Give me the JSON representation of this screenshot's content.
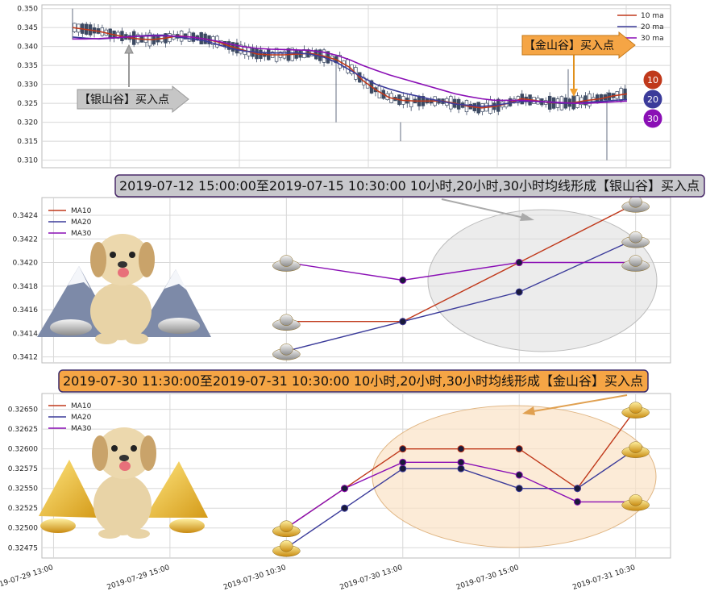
{
  "colors": {
    "ma10": "#c0391b",
    "ma20": "#3b3b9a",
    "ma30": "#8a0fb5",
    "candle": "#3d4a63",
    "silver_banner": "#c8c8cc",
    "gold_banner": "#f5a545",
    "silver_ellipse": "#dcdcdc",
    "gold_ellipse": "#fbe3c6"
  },
  "chart_data": [
    {
      "type": "candlestick-line",
      "ylim": [
        0.308,
        0.351
      ],
      "yticks": [
        "0.350",
        "0.345",
        "0.340",
        "0.335",
        "0.330",
        "0.325",
        "0.320",
        "0.315",
        "0.310"
      ],
      "ytick_values": [
        0.35,
        0.345,
        0.34,
        0.335,
        0.33,
        0.325,
        0.32,
        0.315,
        0.31
      ],
      "legend": [
        "10 ma",
        "20 ma",
        "30 ma"
      ],
      "legend_position": "top-right",
      "grid": true,
      "n_points": 140,
      "ma10": [
        0.345,
        0.3445,
        0.344,
        0.3432,
        0.3425,
        0.342,
        0.3418,
        0.3422,
        0.3428,
        0.3425,
        0.342,
        0.3412,
        0.34,
        0.339,
        0.338,
        0.3378,
        0.3378,
        0.338,
        0.3382,
        0.3375,
        0.3365,
        0.3345,
        0.331,
        0.3285,
        0.3265,
        0.3258,
        0.3256,
        0.3256,
        0.3256,
        0.325,
        0.3242,
        0.3238,
        0.3242,
        0.325,
        0.3262,
        0.3258,
        0.3252,
        0.325,
        0.3252,
        0.3258,
        0.3262,
        0.327,
        0.3275
      ],
      "ma20": [
        0.3425,
        0.3422,
        0.342,
        0.3422,
        0.3425,
        0.3428,
        0.343,
        0.343,
        0.3425,
        0.342,
        0.3415,
        0.3405,
        0.3395,
        0.3388,
        0.3385,
        0.3383,
        0.3383,
        0.3383,
        0.338,
        0.3372,
        0.3358,
        0.3338,
        0.3318,
        0.33,
        0.3288,
        0.3278,
        0.327,
        0.3262,
        0.3255,
        0.3248,
        0.3245,
        0.3242,
        0.3245,
        0.325,
        0.3255,
        0.3255,
        0.3253,
        0.325,
        0.325,
        0.3253,
        0.3255,
        0.3258,
        0.326
      ],
      "ma30": [
        0.342,
        0.342,
        0.3421,
        0.3423,
        0.3425,
        0.3427,
        0.3428,
        0.3428,
        0.3427,
        0.3425,
        0.342,
        0.3414,
        0.3406,
        0.3399,
        0.3395,
        0.3393,
        0.3392,
        0.3391,
        0.339,
        0.3385,
        0.3377,
        0.3365,
        0.335,
        0.3337,
        0.3325,
        0.3315,
        0.3305,
        0.3295,
        0.3285,
        0.3275,
        0.3268,
        0.3262,
        0.3258,
        0.3258,
        0.3258,
        0.3256,
        0.3254,
        0.3252,
        0.325,
        0.325,
        0.3252,
        0.3254,
        0.3256
      ]
    },
    {
      "type": "line",
      "ylim": [
        0.34115,
        0.34255
      ],
      "yticks": [
        "0.3424",
        "0.3422",
        "0.3420",
        "0.3418",
        "0.3416",
        "0.3414",
        "0.3412"
      ],
      "ytick_values": [
        0.3424,
        0.3422,
        0.342,
        0.3418,
        0.3416,
        0.3414,
        0.3412
      ],
      "x": [
        2,
        3,
        4,
        5
      ],
      "xlim": [
        -0.1,
        5.3
      ],
      "legend_position": "top-left",
      "grid": true,
      "series": [
        {
          "name": "MA10",
          "values": [
            0.3415,
            0.3415,
            0.342,
            0.3425
          ]
        },
        {
          "name": "MA20",
          "values": [
            0.34125,
            0.3415,
            0.34175,
            0.3422
          ]
        },
        {
          "name": "MA30",
          "values": [
            0.342,
            0.34185,
            0.342,
            0.342
          ]
        }
      ]
    },
    {
      "type": "line",
      "ylim": [
        0.32462,
        0.3267
      ],
      "yticks": [
        "0.32650",
        "0.32625",
        "0.32600",
        "0.32575",
        "0.32550",
        "0.32525",
        "0.32500",
        "0.32475"
      ],
      "ytick_values": [
        0.3265,
        0.32625,
        0.326,
        0.32575,
        0.3255,
        0.32525,
        0.325,
        0.32475
      ],
      "x": [
        2,
        2.5,
        3,
        3.5,
        4,
        4.5,
        5
      ],
      "xlim": [
        -0.1,
        5.3
      ],
      "xticks": [
        "2019-07-29 13:00",
        "2019-07-29 15:00",
        "2019-07-30 10:30",
        "2019-07-30 13:00",
        "2019-07-30 15:00",
        "2019-07-31 10:30"
      ],
      "xtick_values": [
        0,
        1,
        2,
        3,
        4,
        5
      ],
      "legend_position": "top-left",
      "grid": true,
      "series": [
        {
          "name": "MA10",
          "values": [
            0.325,
            0.3255,
            0.326,
            0.326,
            0.326,
            0.3255,
            0.3265
          ]
        },
        {
          "name": "MA20",
          "values": [
            0.32475,
            0.32525,
            0.32575,
            0.32575,
            0.3255,
            0.3255,
            0.326
          ]
        },
        {
          "name": "MA30",
          "values": [
            0.325,
            0.3255,
            0.32583,
            0.32583,
            0.32567,
            0.32533,
            0.32533
          ]
        }
      ]
    }
  ],
  "annotations": {
    "silver_arrow_label": "【银山谷】买入点",
    "gold_arrow_label": "【金山谷】买入点",
    "badges": [
      "10",
      "20",
      "30"
    ],
    "silver_banner": "2019-07-12 15:00:00至2019-07-15 10:30:00 10小时,20小时,30小时均线形成【银山谷】买入点",
    "gold_banner": "2019-07-30 11:30:00至2019-07-31 10:30:00 10小时,20小时,30小时均线形成【金山谷】买入点"
  }
}
